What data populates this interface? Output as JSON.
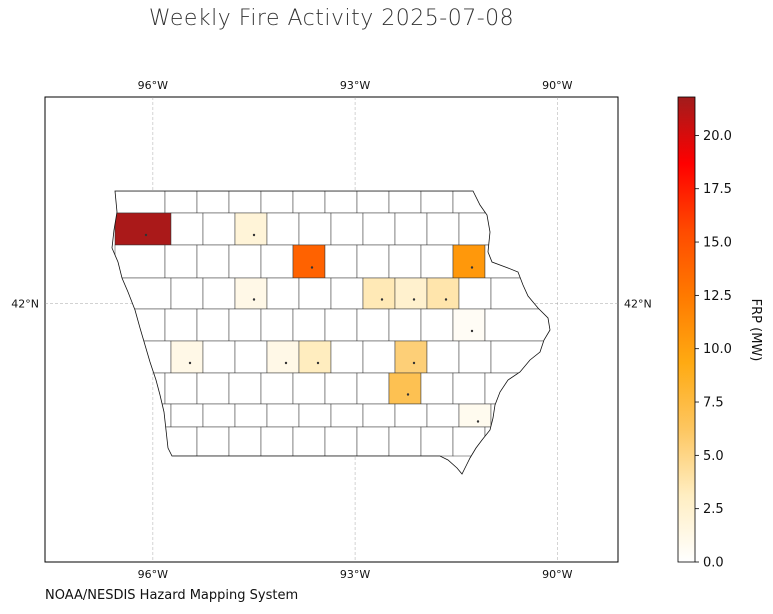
{
  "title": "Weekly Fire Activity 2025-07-08",
  "footer": "NOAA/NESDIS Hazard Mapping System",
  "map": {
    "region": "Iowa",
    "lon_ticks": [
      {
        "value": -96,
        "label": "96°W"
      },
      {
        "value": -93,
        "label": "93°W"
      },
      {
        "value": -90,
        "label": "90°W"
      }
    ],
    "lat_ticks": [
      {
        "value": 42,
        "label": "42°N"
      }
    ],
    "extent": {
      "lon": [
        -97.6,
        -89.1
      ],
      "lat": [
        40.0,
        43.6
      ]
    },
    "gridlines": true
  },
  "colorbar": {
    "label": "FRP (MW)",
    "min": 0,
    "max": 21.8,
    "ticks": [
      "0.0",
      "2.5",
      "5.0",
      "7.5",
      "10.0",
      "12.5",
      "15.0",
      "17.5",
      "20.0"
    ],
    "colormap": [
      "#ffffff",
      "#ffeec2",
      "#fdc660",
      "#ffaa12",
      "#ff7a00",
      "#ff4a00",
      "#ff0000",
      "#a11c1c"
    ]
  },
  "chart_data": {
    "type": "choropleth",
    "variable": "FRP (MW)",
    "counties_with_fire": [
      {
        "row": 1,
        "col": 0,
        "value": 21.5
      },
      {
        "row": 1,
        "col": 3,
        "value": 2.0
      },
      {
        "row": 2,
        "col": 5,
        "value": 14.0
      },
      {
        "row": 2,
        "col": 10,
        "value": 10.5
      },
      {
        "row": 3,
        "col": 3,
        "value": 1.2
      },
      {
        "row": 3,
        "col": 7,
        "value": 3.5
      },
      {
        "row": 3,
        "col": 8,
        "value": 2.5
      },
      {
        "row": 3,
        "col": 9,
        "value": 3.8
      },
      {
        "row": 4,
        "col": 10,
        "value": 0.5
      },
      {
        "row": 5,
        "col": 1,
        "value": 1.2
      },
      {
        "row": 5,
        "col": 4,
        "value": 1.2
      },
      {
        "row": 5,
        "col": 5,
        "value": 3.2
      },
      {
        "row": 5,
        "col": 8,
        "value": 5.5
      },
      {
        "row": 6,
        "col": 8,
        "value": 6.8
      },
      {
        "row": 7,
        "col": 10,
        "value": 0.8
      }
    ]
  }
}
